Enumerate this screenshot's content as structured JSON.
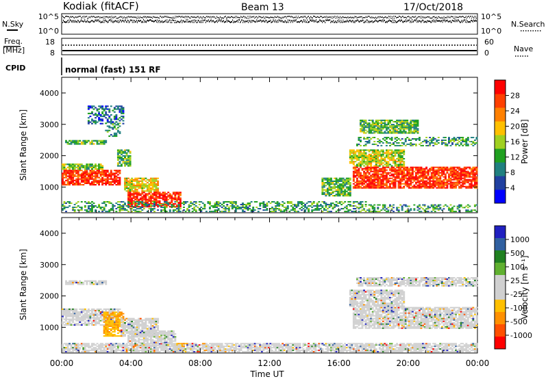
{
  "header": {
    "station": "Kodiak (fitACF)",
    "beam": "Beam 13",
    "date": "17/Oct/2018"
  },
  "strip_labels": {
    "nsky": "N.Sky",
    "nsearch": "N.Search",
    "freq_line1": "Freq.",
    "freq_line2": "[MHz]",
    "nave": "Nave",
    "cpid": "CPID",
    "cpid_value": "normal (fast) 151 RF"
  },
  "strip_ticks": {
    "noise_left": [
      "10^5",
      "10^0"
    ],
    "noise_right": [
      "10^5",
      "10^0"
    ],
    "freq_left": [
      "18",
      "8"
    ],
    "nave_right": [
      "60",
      "0"
    ]
  },
  "colors": {
    "power_scale": [
      "#0000ff",
      "#2040a0",
      "#208080",
      "#20a020",
      "#a0d020",
      "#ffc000",
      "#ff8000",
      "#ff4000",
      "#ff0000"
    ],
    "velocity_scale": [
      "#ff0000",
      "#ff5000",
      "#ff9000",
      "#ffc000",
      "#d0d0d0",
      "#d0d0d0",
      "#60b030",
      "#208020",
      "#3060a0",
      "#2020c0"
    ]
  },
  "chart_data": [
    {
      "type": "heatmap",
      "title": "Power",
      "xlabel": "",
      "ylabel": "Slant Range [km]",
      "x_ticks": [
        "00:00",
        "04:00",
        "08:00",
        "12:00",
        "16:00",
        "20:00",
        "00:00"
      ],
      "y_ticks": [
        "1000",
        "2000",
        "3000",
        "4000"
      ],
      "xlim_hours": [
        0,
        24
      ],
      "ylim_km": [
        180,
        4500
      ],
      "colorbar_label": "Power [dB]",
      "colorbar_ticks": [
        "4",
        "8",
        "12",
        "16",
        "20",
        "24",
        "28"
      ],
      "colorbar_range": [
        0,
        30
      ],
      "regions": [
        {
          "t0": 0.0,
          "t1": 3.4,
          "r0": 1050,
          "r1": 1550,
          "level": 28
        },
        {
          "t0": 0.0,
          "t1": 2.4,
          "r0": 1550,
          "r1": 1750,
          "level": 14
        },
        {
          "t0": 0.2,
          "t1": 2.6,
          "r0": 2350,
          "r1": 2500,
          "level": 12
        },
        {
          "t0": 2.5,
          "t1": 3.4,
          "r0": 2600,
          "r1": 3100,
          "level": 10
        },
        {
          "t0": 1.5,
          "t1": 3.6,
          "r0": 3000,
          "r1": 3600,
          "level": 6
        },
        {
          "t0": 3.2,
          "t1": 4.0,
          "r0": 1650,
          "r1": 2200,
          "level": 12
        },
        {
          "t0": 3.6,
          "t1": 5.6,
          "r0": 850,
          "r1": 1300,
          "level": 18
        },
        {
          "t0": 3.8,
          "t1": 6.9,
          "r0": 350,
          "r1": 850,
          "level": 28
        },
        {
          "t0": 0.0,
          "t1": 17.6,
          "r0": 200,
          "r1": 550,
          "level": 10
        },
        {
          "t0": 15.0,
          "t1": 16.7,
          "r0": 700,
          "r1": 1300,
          "level": 12
        },
        {
          "t0": 16.8,
          "t1": 24.0,
          "r0": 950,
          "r1": 1650,
          "level": 28
        },
        {
          "t0": 16.6,
          "t1": 19.8,
          "r0": 1650,
          "r1": 2200,
          "level": 16
        },
        {
          "t0": 17.0,
          "t1": 24.0,
          "r0": 2300,
          "r1": 2600,
          "level": 10
        },
        {
          "t0": 17.2,
          "t1": 20.6,
          "r0": 2700,
          "r1": 3150,
          "level": 12
        },
        {
          "t0": 17.0,
          "t1": 24.0,
          "r0": 200,
          "r1": 450,
          "level": 10
        }
      ]
    },
    {
      "type": "heatmap",
      "title": "Velocity",
      "xlabel": "Time UT",
      "ylabel": "Slant Range [km]",
      "x_ticks": [
        "00:00",
        "04:00",
        "08:00",
        "12:00",
        "16:00",
        "20:00",
        "00:00"
      ],
      "y_ticks": [
        "1000",
        "2000",
        "3000",
        "4000"
      ],
      "xlim_hours": [
        0,
        24
      ],
      "ylim_km": [
        180,
        4500
      ],
      "colorbar_label": "Velocity [m s⁻¹]",
      "colorbar_ticks": [
        "1000",
        "500",
        "100",
        "25",
        "-25",
        "-100",
        "-500",
        "-1000"
      ],
      "regions": [
        {
          "t0": 0.0,
          "t1": 3.4,
          "r0": 1050,
          "r1": 1600,
          "level": 0
        },
        {
          "t0": 2.4,
          "t1": 3.6,
          "r0": 700,
          "r1": 1500,
          "level": -150
        },
        {
          "t0": 3.4,
          "t1": 5.6,
          "r0": 700,
          "r1": 1300,
          "level": 0
        },
        {
          "t0": 3.8,
          "t1": 6.6,
          "r0": 400,
          "r1": 900,
          "level": 0
        },
        {
          "t0": 6.5,
          "t1": 7.2,
          "r0": 200,
          "r1": 500,
          "level": -150
        },
        {
          "t0": 0.0,
          "t1": 24.0,
          "r0": 200,
          "r1": 500,
          "level": 30
        },
        {
          "t0": 16.8,
          "t1": 24.0,
          "r0": 950,
          "r1": 1650,
          "level": 0
        },
        {
          "t0": 16.6,
          "t1": 19.8,
          "r0": 1650,
          "r1": 2200,
          "level": 0
        },
        {
          "t0": 17.0,
          "t1": 24.0,
          "r0": 2300,
          "r1": 2600,
          "level": 0
        },
        {
          "t0": 0.2,
          "t1": 2.6,
          "r0": 2350,
          "r1": 2500,
          "level": 0
        }
      ]
    }
  ]
}
